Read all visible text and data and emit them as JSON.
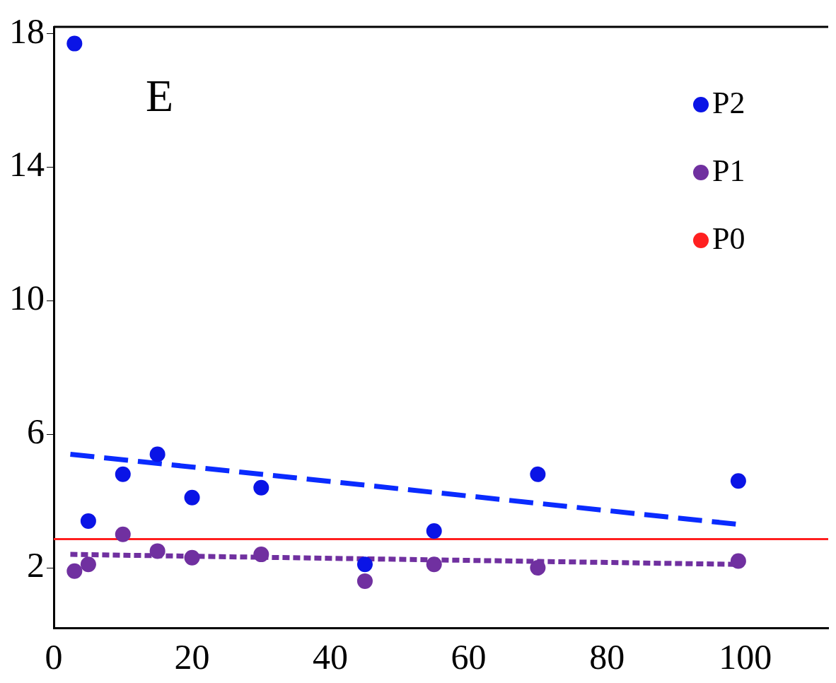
{
  "chart_data": {
    "type": "scatter",
    "annotations": [
      "E"
    ],
    "xlim": [
      0,
      112
    ],
    "ylim": [
      0.2,
      18.2
    ],
    "xticks": [
      0,
      20,
      40,
      60,
      80,
      100
    ],
    "yticks": [
      2,
      6,
      10,
      14,
      18
    ],
    "grid": false,
    "legend": "top right",
    "marker": "circle",
    "series": [
      {
        "name": "P2",
        "color": "#0a14e6",
        "x": [
          3,
          5,
          10,
          15,
          20,
          30,
          45,
          55,
          70,
          99
        ],
        "values": [
          17.7,
          3.4,
          4.8,
          5.4,
          4.1,
          4.4,
          2.1,
          3.1,
          4.8,
          4.6
        ]
      },
      {
        "name": "P1",
        "color": "#7030a0",
        "x": [
          3,
          5,
          10,
          15,
          20,
          30,
          45,
          55,
          70,
          99
        ],
        "values": [
          1.9,
          2.1,
          3.0,
          2.5,
          2.3,
          2.4,
          1.6,
          2.1,
          2.0,
          2.2
        ]
      },
      {
        "name": "P0",
        "type": "line",
        "marker": "none",
        "color": "#ff2020",
        "x": [
          0,
          112
        ],
        "values": [
          2.86,
          2.86
        ]
      },
      {
        "type": "line",
        "marker": "none",
        "line_style": "dashed",
        "color": "#0a2bff",
        "x": [
          2.4,
          99
        ],
        "values": [
          5.4,
          3.3
        ]
      },
      {
        "type": "line",
        "marker": "none",
        "line_style": "dotted",
        "color": "#7030a0",
        "x": [
          2.4,
          99
        ],
        "values": [
          2.4,
          2.1
        ]
      }
    ]
  }
}
